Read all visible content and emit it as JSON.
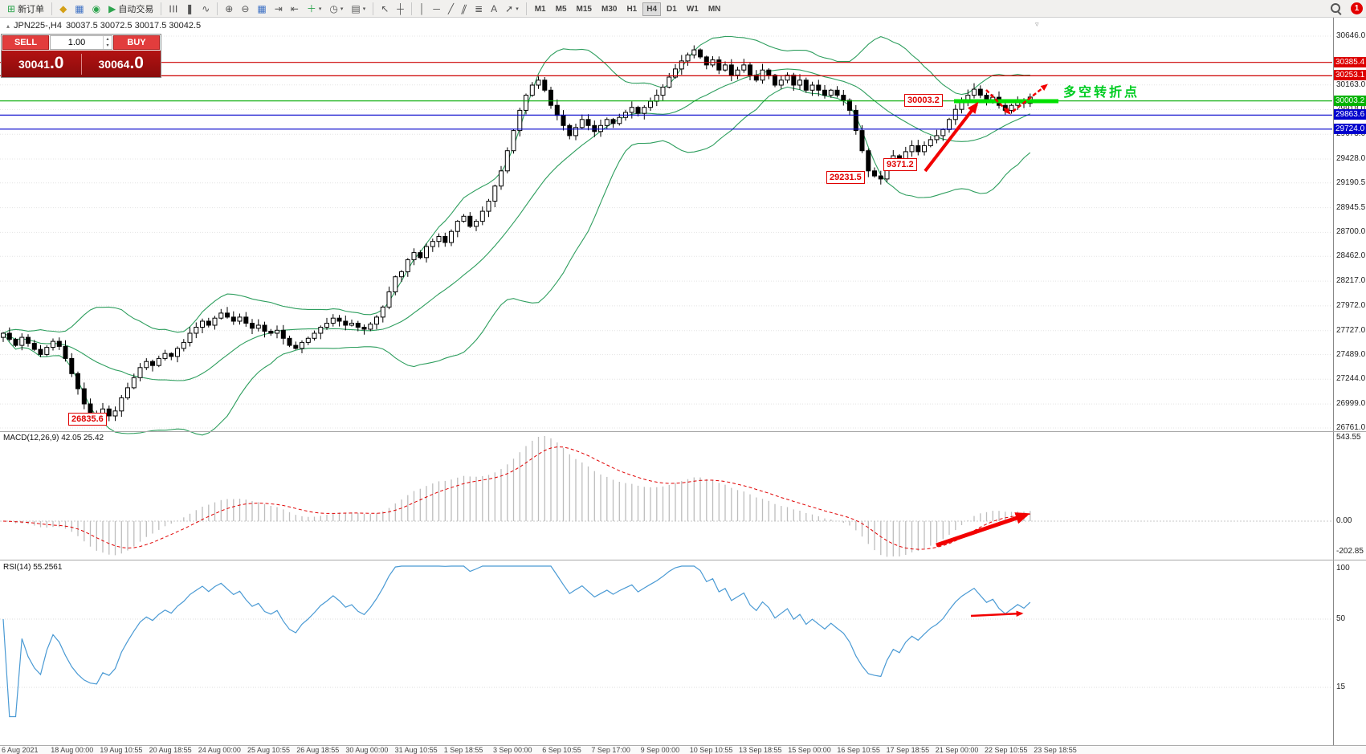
{
  "toolbar": {
    "new_order_label": "新订单",
    "autotrading_label": "自动交易",
    "timeframes": [
      "M1",
      "M5",
      "M15",
      "M30",
      "H1",
      "H4",
      "D1",
      "W1",
      "MN"
    ],
    "active_timeframe": "H4",
    "notification_count": "1"
  },
  "symbol_header": {
    "symbol": "JPN225-,H4",
    "ohlc": "30037.5 30072.5 30017.5 30042.5"
  },
  "trade_panel": {
    "sell_label": "SELL",
    "buy_label": "BUY",
    "volume": "1.00",
    "sell_price": "30041",
    "sell_price_big": ".0",
    "buy_price": "30064",
    "buy_price_big": ".0"
  },
  "indicators": {
    "macd_label": "MACD(12,26,9) 42.05 25.42",
    "rsi_label": "RSI(14) 55.2561"
  },
  "annotations": {
    "low_label": "26835.6",
    "drop_low_label": "29231.5",
    "retrace_label": "9371.2",
    "breakout_label": "30003.2",
    "turning_point_label": "多空转折点"
  },
  "axis": {
    "price_ticks": [
      30646.0,
      30163.0,
      29918.0,
      29673.0,
      29428.0,
      29190.5,
      28945.5,
      28700.0,
      28462.0,
      28217.0,
      27972.0,
      27727.0,
      27489.0,
      27244.0,
      26999.0,
      26761.0
    ],
    "macd_ticks": [
      "543.55",
      "0.00",
      "-202.85"
    ],
    "rsi_ticks": [
      "100",
      "50",
      "15"
    ]
  },
  "levels": [
    {
      "price": 30385.4,
      "color": "#cc0000",
      "label": "30385.4",
      "flag_bg": "#dd0000"
    },
    {
      "price": 30253.1,
      "color": "#cc0000",
      "label": "30253.1",
      "flag_bg": "#dd0000"
    },
    {
      "price": 30003.2,
      "color": "#00aa00",
      "label": "30003.2",
      "flag_bg": "#00b300"
    },
    {
      "price": 29863.6,
      "color": "#0000cc",
      "label": "29863.6",
      "flag_bg": "#0000cc"
    },
    {
      "price": 29724.0,
      "color": "#0000cc",
      "label": "29724.0",
      "flag_bg": "#0000cc"
    }
  ],
  "time_axis": [
    "6 Aug 2021",
    "18 Aug 00:00",
    "19 Aug 10:55",
    "20 Aug 18:55",
    "24 Aug 00:00",
    "25 Aug 10:55",
    "26 Aug 18:55",
    "30 Aug 00:00",
    "31 Aug 10:55",
    "1 Sep 18:55",
    "3 Sep 00:00",
    "6 Sep 10:55",
    "7 Sep 17:00",
    "9 Sep 00:00",
    "10 Sep 10:55",
    "13 Sep 18:55",
    "15 Sep 00:00",
    "16 Sep 10:55",
    "17 Sep 18:55",
    "21 Sep 00:00",
    "22 Sep 10:55",
    "23 Sep 18:55"
  ],
  "chart_data": {
    "type": "candlestick",
    "symbol": "JPN225-",
    "period": "H4",
    "price_range": [
      26761.0,
      30646.0
    ],
    "bollinger": {
      "period": 20,
      "deviation": 2
    },
    "macd": {
      "fast": 12,
      "slow": 26,
      "signal": 9,
      "current": [
        42.05,
        25.42
      ],
      "range": [
        -202.85,
        543.55
      ]
    },
    "rsi": {
      "period": 14,
      "current": 55.2561
    },
    "key_points": {
      "swing_low": 26835.6,
      "pullback_low": 29231.5,
      "breakout_level": 30003.2,
      "resistance": [
        30385.4,
        30253.1
      ],
      "support": [
        29863.6,
        29724.0
      ]
    },
    "closes": [
      27700,
      27640,
      27580,
      27660,
      27600,
      27540,
      27490,
      27560,
      27620,
      27570,
      27450,
      27300,
      27150,
      27000,
      26900,
      26870,
      26950,
      26880,
      26930,
      27060,
      27160,
      27260,
      27360,
      27420,
      27380,
      27450,
      27500,
      27470,
      27550,
      27610,
      27700,
      27760,
      27820,
      27780,
      27850,
      27900,
      27860,
      27820,
      27860,
      27800,
      27750,
      27780,
      27720,
      27700,
      27730,
      27650,
      27580,
      27550,
      27610,
      27650,
      27700,
      27760,
      27800,
      27850,
      27820,
      27780,
      27800,
      27760,
      27740,
      27790,
      27860,
      27960,
      28110,
      28260,
      28310,
      28430,
      28500,
      28450,
      28560,
      28610,
      28660,
      28600,
      28710,
      28810,
      28860,
      28760,
      28810,
      28910,
      29010,
      29160,
      29310,
      29510,
      29710,
      29910,
      30060,
      30160,
      30210,
      30110,
      29960,
      29860,
      29760,
      29660,
      29740,
      29820,
      29760,
      29700,
      29760,
      29820,
      29780,
      29840,
      29890,
      29940,
      29880,
      29940,
      30000,
      30060,
      30140,
      30240,
      30320,
      30400,
      30460,
      30510,
      30440,
      30360,
      30410,
      30310,
      30360,
      30260,
      30310,
      30360,
      30260,
      30210,
      30310,
      30260,
      30160,
      30210,
      30260,
      30160,
      30210,
      30110,
      30160,
      30110,
      30060,
      30110,
      30060,
      30010,
      29910,
      29710,
      29510,
      29310,
      29260,
      29230,
      29360,
      29460,
      29400,
      29500,
      29560,
      29500,
      29560,
      29620,
      29660,
      29720,
      29820,
      29920,
      30000,
      30060,
      30120,
      30060,
      30000,
      30040,
      29960,
      29910,
      29960,
      30010,
      29980,
      30042
    ]
  }
}
